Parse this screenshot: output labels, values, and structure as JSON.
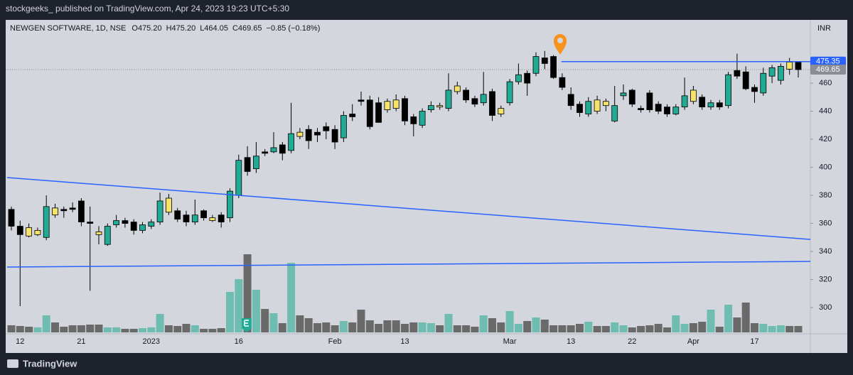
{
  "header": {
    "byline": "stockgeeks_ published on TradingView.com, Apr 24, 2023 19:23 UTC+5:30"
  },
  "footer": {
    "brand": "TradingView"
  },
  "chart_data": {
    "type": "candlestick",
    "symbol": "NEWGEN SOFTWARE, 1D, NSE",
    "legend_values": [
      "O475.20",
      "H475.20",
      "L464.05",
      "C469.65",
      "−0.85 (−0.18%)"
    ],
    "currency": "INR",
    "categories": [
      null,
      "12",
      null,
      null,
      null,
      null,
      null,
      null,
      "21",
      null,
      null,
      null,
      null,
      null,
      null,
      null,
      "2023",
      null,
      null,
      null,
      null,
      null,
      null,
      null,
      null,
      null,
      "16",
      null,
      null,
      null,
      null,
      null,
      null,
      null,
      null,
      null,
      null,
      "Feb",
      null,
      null,
      null,
      null,
      null,
      null,
      null,
      "13",
      null,
      null,
      null,
      null,
      null,
      null,
      null,
      null,
      null,
      null,
      null,
      "Mar",
      null,
      null,
      null,
      null,
      null,
      null,
      "13",
      null,
      null,
      null,
      null,
      null,
      null,
      "22",
      null,
      null,
      null,
      null,
      null,
      null,
      "Apr",
      null,
      null,
      null,
      null,
      null,
      null,
      "17",
      null,
      null,
      null,
      null,
      null
    ],
    "open": [
      370,
      358,
      357,
      352,
      350,
      371,
      370,
      371,
      376,
      361,
      354,
      345,
      359,
      362,
      361,
      355,
      358,
      361,
      378,
      369,
      366,
      361,
      369,
      364,
      366,
      364,
      380,
      407,
      399,
      411,
      411,
      416,
      412,
      425,
      427,
      425,
      429,
      427,
      421,
      438,
      448,
      448,
      446,
      447,
      448,
      449,
      436,
      430,
      441,
      444,
      442,
      458,
      455,
      449,
      446,
      454,
      442,
      446,
      461,
      467,
      467,
      478,
      479,
      464,
      452,
      445,
      438,
      448,
      447,
      433,
      451,
      455,
      442,
      453,
      445,
      443,
      438,
      443,
      455,
      450,
      443,
      446,
      444,
      469,
      468,
      457,
      453,
      465,
      462,
      475,
      475.2
    ],
    "high": [
      372,
      362,
      360,
      357,
      380,
      374,
      372,
      375,
      378,
      372,
      358,
      360,
      366,
      364,
      363,
      361,
      363,
      382,
      381,
      371,
      369,
      377,
      370,
      366,
      368,
      385,
      409,
      415,
      418,
      413,
      425,
      418,
      446,
      428,
      430,
      428,
      432,
      430,
      440,
      445,
      454,
      451,
      450,
      449,
      452,
      451,
      438,
      442,
      447,
      446,
      467,
      461,
      457,
      451,
      468,
      456,
      444,
      463,
      474,
      469,
      482,
      483,
      480,
      467,
      457,
      447,
      450,
      451,
      449,
      458,
      459,
      456,
      444,
      455,
      447,
      445,
      445,
      464,
      458,
      452,
      448,
      448,
      468,
      481,
      472,
      459,
      471,
      473,
      474,
      478,
      475.2
    ],
    "low": [
      355,
      301,
      350,
      351,
      348,
      364,
      364,
      368,
      358,
      312,
      345,
      344,
      357,
      357,
      352,
      353,
      356,
      359,
      366,
      361,
      358,
      359,
      362,
      361,
      357,
      361,
      378,
      394,
      396,
      408,
      410,
      405,
      410,
      420,
      413,
      418,
      420,
      413,
      418,
      433,
      444,
      427,
      432,
      439,
      440,
      430,
      422,
      428,
      439,
      441,
      440,
      452,
      446,
      443,
      444,
      433,
      436,
      444,
      459,
      451,
      465,
      470,
      463,
      455,
      441,
      436,
      436,
      438,
      440,
      432,
      448,
      443,
      439,
      439,
      438,
      436,
      437,
      441,
      445,
      441,
      441,
      441,
      442,
      463,
      455,
      446,
      451,
      460,
      459,
      466,
      464.05
    ],
    "close": [
      358,
      352,
      351,
      355,
      372,
      366,
      369,
      370,
      361,
      360,
      352,
      358,
      362,
      360,
      355,
      359,
      361,
      376,
      368,
      363,
      361,
      366,
      364,
      362,
      361,
      383,
      405,
      397,
      408,
      410,
      414,
      410,
      424,
      422,
      419,
      423,
      426,
      418,
      437,
      436,
      447,
      429,
      432,
      441,
      442,
      433,
      431,
      440,
      444,
      443,
      455,
      454,
      448,
      445,
      452,
      437,
      438,
      461,
      466,
      460,
      479,
      474,
      464,
      457,
      444,
      439,
      447,
      440,
      444,
      444,
      453,
      445,
      441,
      441,
      440,
      438,
      443,
      451,
      447,
      443,
      446,
      443,
      466,
      465,
      456,
      454,
      467,
      471,
      472,
      470,
      469.65
    ],
    "volume": [
      10,
      9,
      8,
      7,
      24,
      14,
      8,
      10,
      10,
      11,
      11,
      7,
      7,
      5,
      5,
      6,
      7,
      26,
      10,
      9,
      12,
      10,
      5,
      5,
      6,
      57,
      75,
      110,
      60,
      33,
      27,
      13,
      98,
      24,
      20,
      13,
      14,
      10,
      16,
      14,
      32,
      17,
      12,
      17,
      17,
      12,
      14,
      14,
      13,
      10,
      26,
      10,
      10,
      8,
      24,
      20,
      14,
      30,
      12,
      16,
      21,
      18,
      10,
      10,
      10,
      12,
      15,
      9,
      9,
      14,
      10,
      7,
      9,
      10,
      12,
      7,
      24,
      12,
      13,
      15,
      32,
      8,
      39,
      21,
      42,
      13,
      12,
      9,
      10,
      9,
      9
    ],
    "colors": [
      "#000000",
      "#000000",
      "#f5e36a",
      "#f5e36a",
      "#22ab94",
      "#f5e36a",
      "#000000",
      "#000000",
      "#000000",
      "#000000",
      "#f5e36a",
      "#22ab94",
      "#22ab94",
      "#000000",
      "#000000",
      "#22ab94",
      "#22ab94",
      "#22ab94",
      "#f5e36a",
      "#000000",
      "#000000",
      "#22ab94",
      "#000000",
      "#f5e36a",
      "#000000",
      "#22ab94",
      "#22ab94",
      "#000000",
      "#22ab94",
      "#000000",
      "#22ab94",
      "#000000",
      "#22ab94",
      "#f5e36a",
      "#000000",
      "#000000",
      "#000000",
      "#000000",
      "#22ab94",
      "#000000",
      "#000000",
      "#000000",
      "#000000",
      "#f5e36a",
      "#f5e36a",
      "#000000",
      "#000000",
      "#22ab94",
      "#22ab94",
      "#f5e36a",
      "#22ab94",
      "#f5e36a",
      "#000000",
      "#000000",
      "#22ab94",
      "#000000",
      "#f5e36a",
      "#22ab94",
      "#22ab94",
      "#000000",
      "#22ab94",
      "#000000",
      "#000000",
      "#000000",
      "#000000",
      "#000000",
      "#22ab94",
      "#f5e36a",
      "#f5e36a",
      "#22ab94",
      "#22ab94",
      "#000000",
      "#000000",
      "#000000",
      "#000000",
      "#000000",
      "#22ab94",
      "#22ab94",
      "#f5e36a",
      "#000000",
      "#22ab94",
      "#000000",
      "#22ab94",
      "#000000",
      "#000000",
      "#000000",
      "#22ab94",
      "#22ab94",
      "#22ab94",
      "#f5e36a",
      "#000000"
    ],
    "volume_up_color": "#6fbcb0",
    "volume_down_color": "#6a6a6a",
    "ylim": [
      282.3,
      505.1
    ],
    "yticks": [
      300,
      320,
      340,
      360,
      380,
      400,
      420,
      440,
      460
    ],
    "grid": false,
    "lines": [
      {
        "x": [
          -0.49,
          91.4
        ],
        "y": [
          392.7,
          348.6
        ],
        "color": "#2962ff"
      },
      {
        "x": [
          -0.49,
          91.4
        ],
        "y": [
          328.9,
          332.9
        ],
        "color": "#2962ff"
      },
      {
        "x": [
          62.9,
          91.4
        ],
        "y": [
          475.35,
          475.35
        ],
        "color": "#2962ff"
      }
    ],
    "price_markers": [
      475.35,
      469.65
    ],
    "price_marker_colors": [
      "#2962ff",
      "#8a8d96"
    ]
  }
}
